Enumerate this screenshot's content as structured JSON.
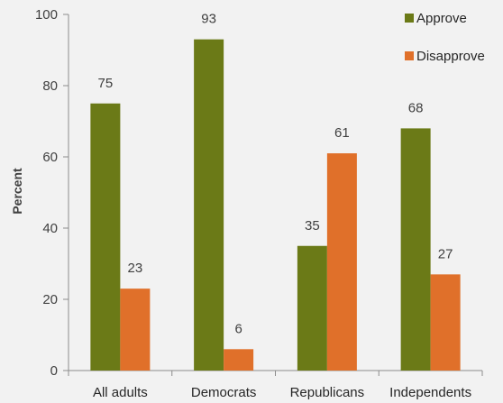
{
  "chart_data": {
    "type": "bar",
    "categories": [
      "All adults",
      "Democrats",
      "Republicans",
      "Independents"
    ],
    "series": [
      {
        "name": "Approve",
        "color": "#6b7a17",
        "values": [
          75,
          93,
          35,
          68
        ]
      },
      {
        "name": "Disapprove",
        "color": "#e0702a",
        "values": [
          23,
          6,
          61,
          27
        ]
      }
    ],
    "title": "",
    "xlabel": "",
    "ylabel": "Percent",
    "ylim": [
      0,
      100
    ],
    "yticks": [
      0,
      20,
      40,
      60,
      80,
      100
    ],
    "legend_position": "top-right",
    "grid": false
  }
}
